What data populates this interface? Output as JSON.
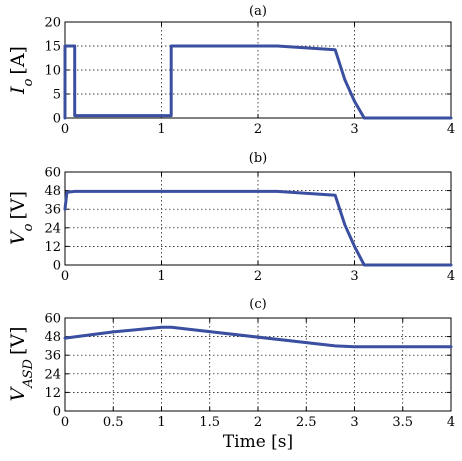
{
  "chart_data": [
    {
      "type": "line",
      "title": "(a)",
      "ylabel_main": "I",
      "ylabel_sub": "o",
      "ylabel_unit": "[A]",
      "xlabel": "",
      "xlim": [
        0,
        4
      ],
      "ylim": [
        0,
        20
      ],
      "xticks": [
        "0",
        "1",
        "2",
        "3",
        "4"
      ],
      "yticks": [
        "0",
        "5",
        "10",
        "15",
        "20"
      ],
      "grid": true,
      "series": [
        {
          "color": "#3b4fa0",
          "x": [
            0.0,
            0.0,
            0.03,
            0.1,
            0.1,
            1.1,
            1.1,
            2.2,
            2.8,
            2.9,
            3.0,
            3.1,
            4.0
          ],
          "y": [
            0.0,
            15.0,
            15.0,
            15.0,
            0.5,
            0.5,
            15.0,
            15.0,
            14.2,
            8.0,
            3.5,
            0.0,
            0.0
          ]
        }
      ]
    },
    {
      "type": "line",
      "title": "(b)",
      "ylabel_main": "V",
      "ylabel_sub": "o",
      "ylabel_unit": "[V]",
      "xlabel": "",
      "xlim": [
        0,
        4
      ],
      "ylim": [
        0,
        60
      ],
      "xticks": [
        "0",
        "1",
        "2",
        "3",
        "4"
      ],
      "yticks": [
        "0",
        "12",
        "24",
        "36",
        "48",
        "60"
      ],
      "grid": true,
      "series": [
        {
          "color": "#3b4fa0",
          "x": [
            0.0,
            0.02,
            0.1,
            2.2,
            2.8,
            2.9,
            3.0,
            3.1,
            4.0
          ],
          "y": [
            36.0,
            47.0,
            47.5,
            47.5,
            45.0,
            26.0,
            12.0,
            0.0,
            0.0
          ]
        }
      ]
    },
    {
      "type": "line",
      "title": "(c)",
      "ylabel_main": "V",
      "ylabel_sub": "ASD",
      "ylabel_unit": "[V]",
      "xlabel": "Time [s]",
      "xlim": [
        0,
        4
      ],
      "ylim": [
        0,
        60
      ],
      "xticks": [
        "0",
        "0.5",
        "1",
        "1.5",
        "2",
        "2.5",
        "3",
        "3.5",
        "4"
      ],
      "yticks": [
        "0",
        "12",
        "24",
        "36",
        "48",
        "60"
      ],
      "grid": true,
      "series": [
        {
          "color": "#3b4fa0",
          "x": [
            0.0,
            0.5,
            1.0,
            1.1,
            2.8,
            3.0,
            4.0
          ],
          "y": [
            47.0,
            51.0,
            54.0,
            54.0,
            42.0,
            41.5,
            41.5
          ]
        }
      ]
    }
  ]
}
